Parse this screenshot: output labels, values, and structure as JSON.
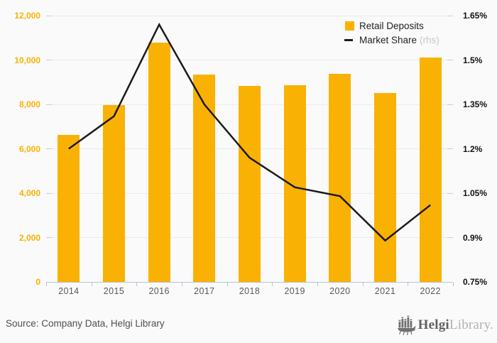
{
  "page": {
    "background": "#fafafa"
  },
  "legend": {
    "items": [
      {
        "label": "Retail Deposits",
        "swatch_color": "#f9b104"
      },
      {
        "label": "Market Share",
        "suffix": "(rhs)",
        "line_color": "#1a1a1a"
      }
    ]
  },
  "chart_data": {
    "type": "bar+line",
    "title": "",
    "categories": [
      "2014",
      "2015",
      "2016",
      "2017",
      "2018",
      "2019",
      "2020",
      "2021",
      "2022"
    ],
    "series": [
      {
        "name": "Retail Deposits",
        "type": "bar",
        "axis": "left",
        "color": "#f9b104",
        "values": [
          6640,
          7980,
          10800,
          9330,
          8820,
          8880,
          9370,
          8500,
          10100
        ]
      },
      {
        "name": "Market Share (rhs)",
        "type": "line",
        "axis": "right",
        "color": "#1a1a1a",
        "values": [
          1.2,
          1.31,
          1.62,
          1.35,
          1.17,
          1.07,
          1.04,
          0.89,
          1.01
        ]
      }
    ],
    "left_axis": {
      "min": 0,
      "max": 12000,
      "step": 2000,
      "tick_values": [
        0,
        2000,
        4000,
        6000,
        8000,
        10000,
        12000
      ],
      "tick_labels": [
        "0",
        "2,000",
        "4,000",
        "6,000",
        "8,000",
        "10,000",
        "12,000"
      ],
      "label_color": "#f9b104"
    },
    "right_axis": {
      "min": 0.75,
      "max": 1.65,
      "step": 0.15,
      "tick_values": [
        0.75,
        0.9,
        1.05,
        1.2,
        1.35,
        1.5,
        1.65
      ],
      "tick_labels": [
        "0.75%",
        "0.9%",
        "1.05%",
        "1.2%",
        "1.35%",
        "1.5%",
        "1.65%"
      ],
      "label_color": "#111111"
    },
    "grid": true,
    "legend_position": "top-right"
  },
  "footer": {
    "source": "Source: Company Data, Helgi Library",
    "logo": {
      "bold": "Helgi",
      "light": "Library."
    }
  }
}
